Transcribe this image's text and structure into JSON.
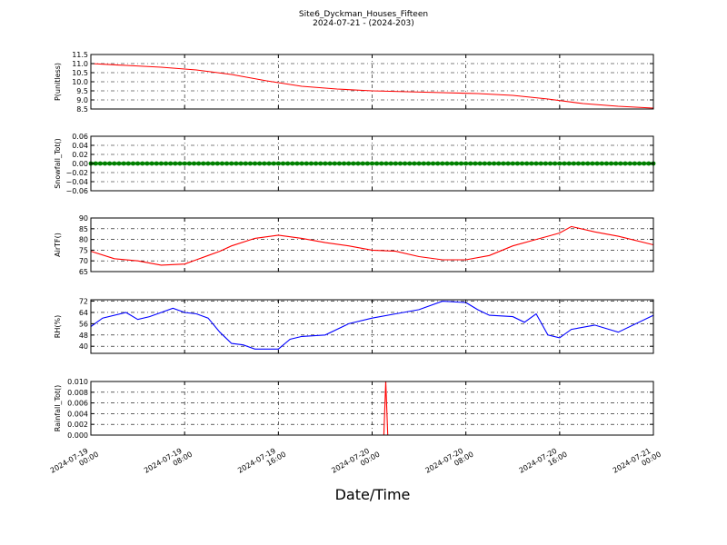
{
  "title": "Site6_Dyckman_Houses_Fifteen",
  "subtitle": "2024-07-21 - (2024-203)",
  "chart_data": {
    "type": "line",
    "title": "Site6_Dyckman_Houses_Fifteen",
    "subtitle": "2024-07-21 - (2024-203)",
    "xlabel": "Date/Time",
    "x_range": [
      "2024-07-19 00:00",
      "2024-07-21 00:00"
    ],
    "x_ticks": [
      "2024-07-19 00:00",
      "2024-07-19 08:00",
      "2024-07-19 16:00",
      "2024-07-20 00:00",
      "2024-07-20 08:00",
      "2024-07-20 16:00",
      "2024-07-21 00:00"
    ],
    "x_tick_labels": [
      [
        "2024-07-19",
        "00:00"
      ],
      [
        "2024-07-19",
        "08:00"
      ],
      [
        "2024-07-19",
        "16:00"
      ],
      [
        "2024-07-20",
        "00:00"
      ],
      [
        "2024-07-20",
        "08:00"
      ],
      [
        "2024-07-20",
        "16:00"
      ],
      [
        "2024-07-21",
        "00:00"
      ]
    ],
    "grid": true,
    "panels": [
      {
        "ylabel": "P(unitless)",
        "ylim": [
          8.5,
          11.5
        ],
        "yticks": [
          "8.5",
          "9.0",
          "9.5",
          "10.0",
          "10.5",
          "11.0",
          "11.5"
        ],
        "color": "#ff0000",
        "series": [
          {
            "x": [
              "2024-07-19 00:00",
              "2024-07-19 03:00",
              "2024-07-19 06:00",
              "2024-07-19 09:00",
              "2024-07-19 12:00",
              "2024-07-19 15:00",
              "2024-07-19 18:00",
              "2024-07-19 21:00",
              "2024-07-20 00:00",
              "2024-07-20 03:00",
              "2024-07-20 06:00",
              "2024-07-20 09:00",
              "2024-07-20 12:00",
              "2024-07-20 15:00",
              "2024-07-20 18:00",
              "2024-07-20 21:00",
              "2024-07-21 00:00"
            ],
            "y": [
              11.0,
              10.9,
              10.8,
              10.65,
              10.4,
              10.05,
              9.75,
              9.6,
              9.5,
              9.45,
              9.4,
              9.35,
              9.25,
              9.05,
              8.8,
              8.65,
              8.55
            ]
          }
        ]
      },
      {
        "ylabel": "Snowfall_Tot()",
        "ylim": [
          -0.06,
          0.06
        ],
        "yticks": [
          "−0.06",
          "−0.04",
          "−0.02",
          "0.00",
          "0.02",
          "0.04",
          "0.06"
        ],
        "color": "#008000",
        "style": "markers",
        "series": [
          {
            "x": [
              "2024-07-19 00:00",
              "2024-07-21 00:00"
            ],
            "y": [
              0.0,
              0.0
            ]
          }
        ]
      },
      {
        "ylabel": "AirTF()",
        "ylim": [
          65,
          90
        ],
        "yticks": [
          "65",
          "70",
          "75",
          "80",
          "85",
          "90"
        ],
        "color": "#ff0000",
        "series": [
          {
            "x": [
              "2024-07-19 00:00",
              "2024-07-19 02:00",
              "2024-07-19 04:00",
              "2024-07-19 06:00",
              "2024-07-19 08:00",
              "2024-07-19 09:00",
              "2024-07-19 10:00",
              "2024-07-19 11:00",
              "2024-07-19 12:00",
              "2024-07-19 14:00",
              "2024-07-19 16:00",
              "2024-07-19 18:00",
              "2024-07-19 20:00",
              "2024-07-19 22:00",
              "2024-07-20 00:00",
              "2024-07-20 02:00",
              "2024-07-20 04:00",
              "2024-07-20 06:00",
              "2024-07-20 08:00",
              "2024-07-20 10:00",
              "2024-07-20 12:00",
              "2024-07-20 14:00",
              "2024-07-20 15:00",
              "2024-07-20 16:00",
              "2024-07-20 17:00",
              "2024-07-20 19:00",
              "2024-07-20 21:00",
              "2024-07-21 00:00"
            ],
            "y": [
              74.5,
              71,
              70,
              68,
              68.5,
              70.5,
              72.5,
              74.5,
              77,
              80.5,
              82,
              80.5,
              78.5,
              77,
              75,
              74.5,
              72,
              70.5,
              70.5,
              72.5,
              77,
              80,
              81.5,
              83,
              86,
              83.5,
              81.5,
              77.5
            ]
          }
        ]
      },
      {
        "ylabel": "RH(%)",
        "ylim": [
          35,
          73
        ],
        "yticks": [
          "40",
          "48",
          "56",
          "64",
          "72"
        ],
        "color": "#0000ff",
        "series": [
          {
            "x": [
              "2024-07-19 00:00",
              "2024-07-19 01:00",
              "2024-07-19 03:00",
              "2024-07-19 04:00",
              "2024-07-19 05:00",
              "2024-07-19 07:00",
              "2024-07-19 08:00",
              "2024-07-19 09:00",
              "2024-07-19 10:00",
              "2024-07-19 11:00",
              "2024-07-19 12:00",
              "2024-07-19 13:00",
              "2024-07-19 14:00",
              "2024-07-19 15:00",
              "2024-07-19 16:00",
              "2024-07-19 17:00",
              "2024-07-19 18:00",
              "2024-07-19 20:00",
              "2024-07-19 22:00",
              "2024-07-20 00:00",
              "2024-07-20 02:00",
              "2024-07-20 04:00",
              "2024-07-20 06:00",
              "2024-07-20 08:00",
              "2024-07-20 09:00",
              "2024-07-20 10:00",
              "2024-07-20 12:00",
              "2024-07-20 13:00",
              "2024-07-20 14:00",
              "2024-07-20 15:00",
              "2024-07-20 16:00",
              "2024-07-20 17:00",
              "2024-07-20 19:00",
              "2024-07-20 21:00",
              "2024-07-21 00:00"
            ],
            "y": [
              54,
              60,
              64,
              59,
              61,
              67,
              64,
              63,
              60,
              50,
              42,
              41,
              38,
              38,
              38,
              45,
              47,
              48,
              56,
              60,
              63,
              66,
              72,
              71,
              66,
              62,
              61,
              57,
              63,
              48,
              46,
              52,
              55,
              50,
              62
            ]
          }
        ]
      },
      {
        "ylabel": "Rainfall_Tot()",
        "ylim": [
          0.0,
          0.01
        ],
        "yticks": [
          "0.000",
          "0.002",
          "0.004",
          "0.006",
          "0.008",
          "0.010"
        ],
        "color": "#ff0000",
        "series": [
          {
            "x": [
              "2024-07-19 00:00",
              "2024-07-20 01:00",
              "2024-07-20 01:10",
              "2024-07-20 01:20",
              "2024-07-21 00:00"
            ],
            "y": [
              0.0,
              0.0,
              0.01,
              0.0,
              0.0
            ]
          }
        ]
      }
    ]
  }
}
